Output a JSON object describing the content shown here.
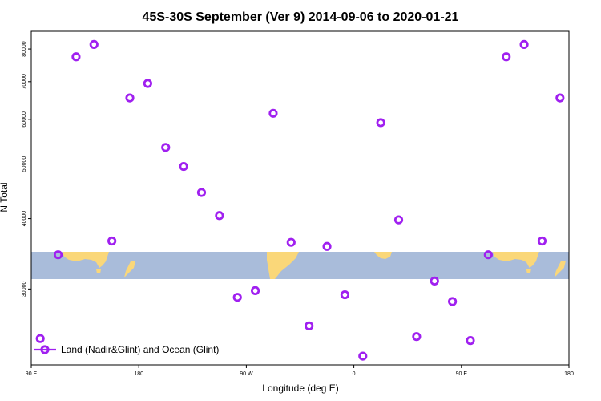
{
  "chart_data": {
    "type": "scatter",
    "title": "45S-30S September (Ver 9)   2014-09-06 to 2020-01-21",
    "xlabel": "Longitude (deg E)",
    "ylabel": "N Total",
    "x_range": [
      90,
      540
    ],
    "y_scale": "log",
    "ylim": [
      22000,
      86000
    ],
    "x_ticks": [
      {
        "value": 90,
        "label": "90 E"
      },
      {
        "value": 180,
        "label": "180"
      },
      {
        "value": 270,
        "label": "90 W"
      },
      {
        "value": 360,
        "label": "0"
      },
      {
        "value": 450,
        "label": "90 E"
      },
      {
        "value": 540,
        "label": "180"
      }
    ],
    "y_ticks": [
      {
        "value": 30000,
        "label": "30000"
      },
      {
        "value": 40000,
        "label": "40000"
      },
      {
        "value": 50000,
        "label": "50000"
      },
      {
        "value": 60000,
        "label": "60000"
      },
      {
        "value": 70000,
        "label": "70000"
      },
      {
        "value": 80000,
        "label": "80000"
      }
    ],
    "series": [
      {
        "name": "Land (Nadir&Glint) and Ocean (Glint)",
        "color": "#a020f0",
        "marker": "circle-open",
        "x": [
          97.5,
          112.5,
          127.5,
          142.5,
          157.5,
          172.5,
          187.5,
          202.5,
          217.5,
          232.5,
          247.5,
          262.5,
          277.5,
          292.5,
          307.5,
          322.5,
          337.5,
          352.5,
          367.5,
          382.5,
          397.5,
          412.5,
          427.5,
          442.5,
          457.5,
          472.5,
          487.5,
          502.5,
          517.5,
          532.5
        ],
        "y": [
          24500,
          34500,
          77500,
          81500,
          36500,
          65500,
          69500,
          53500,
          49500,
          44500,
          40500,
          29000,
          29800,
          61500,
          36300,
          25800,
          35700,
          29300,
          22800,
          59200,
          39800,
          24700,
          31000,
          28500,
          24300,
          34500,
          77500,
          81500,
          36500,
          65500
        ]
      }
    ],
    "grid": false,
    "legend_position": "bottom-left",
    "background_map": "world-land-ocean-band-45S-30S",
    "map_colors": {
      "ocean": "#a9bcda",
      "land": "#fad779"
    }
  }
}
